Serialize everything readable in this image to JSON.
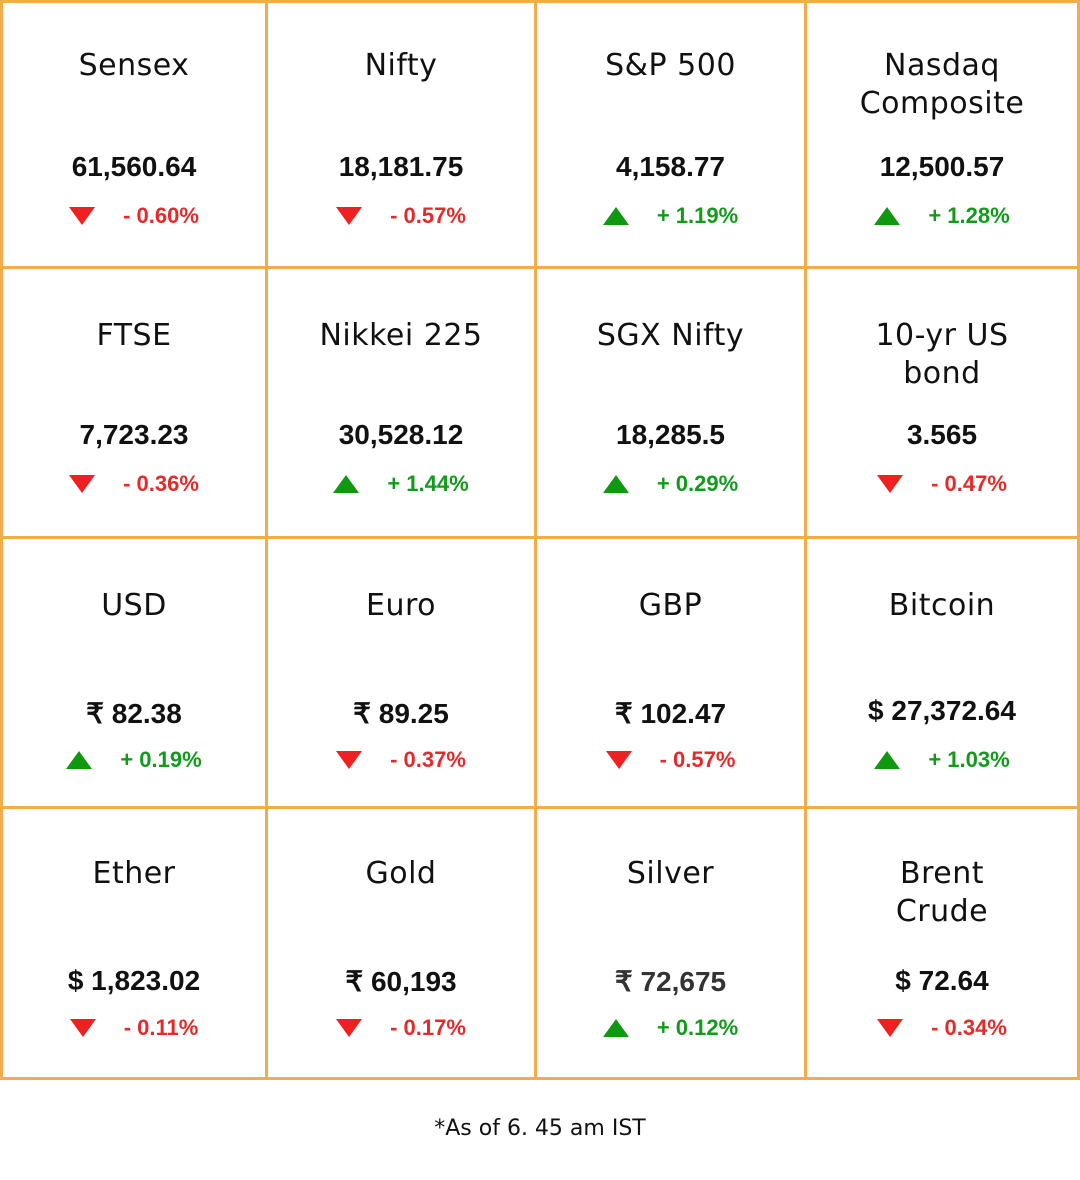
{
  "items": [
    {
      "name": "Sensex",
      "value": "61,560.64",
      "change": "- 0.60%",
      "direction": "down"
    },
    {
      "name": "Nifty",
      "value": "18,181.75",
      "change": "- 0.57%",
      "direction": "down"
    },
    {
      "name": "S&P 500",
      "value": "4,158.77",
      "change": "+ 1.19%",
      "direction": "up"
    },
    {
      "name": "Nasdaq Composite",
      "value": "12,500.57",
      "change": "+ 1.28%",
      "direction": "up"
    },
    {
      "name": "FTSE",
      "value": "7,723.23",
      "change": "- 0.36%",
      "direction": "down"
    },
    {
      "name": "Nikkei 225",
      "value": "30,528.12",
      "change": "+ 1.44%",
      "direction": "up"
    },
    {
      "name": "SGX Nifty",
      "value": "18,285.5",
      "change": "+ 0.29%",
      "direction": "up"
    },
    {
      "name": "10-yr US bond",
      "value": "3.565",
      "change": "- 0.47%",
      "direction": "down"
    },
    {
      "name": "USD",
      "value": "₹ 82.38",
      "change": "+ 0.19%",
      "direction": "up"
    },
    {
      "name": "Euro",
      "value": "₹ 89.25",
      "change": "- 0.37%",
      "direction": "down"
    },
    {
      "name": "GBP",
      "value": "₹ 102.47",
      "change": "- 0.57%",
      "direction": "down"
    },
    {
      "name": "Bitcoin",
      "value": "$ 27,372.64",
      "change": "+ 1.03%",
      "direction": "up"
    },
    {
      "name": "Ether",
      "value": "$ 1,823.02",
      "change": "- 0.11%",
      "direction": "down"
    },
    {
      "name": "Gold",
      "value": "₹ 60,193",
      "change": "- 0.17%",
      "direction": "down"
    },
    {
      "name": "Silver",
      "value": "₹ 72,675",
      "change": "+ 0.12%",
      "direction": "up"
    },
    {
      "name": "Brent Crude",
      "value": "$ 72.64",
      "change": "- 0.34%",
      "direction": "down"
    }
  ],
  "footnote": "*As of 6. 45 am IST",
  "colors": {
    "border": "#f2ad4a",
    "up": "#129a1a",
    "down": "#e42a2a"
  }
}
